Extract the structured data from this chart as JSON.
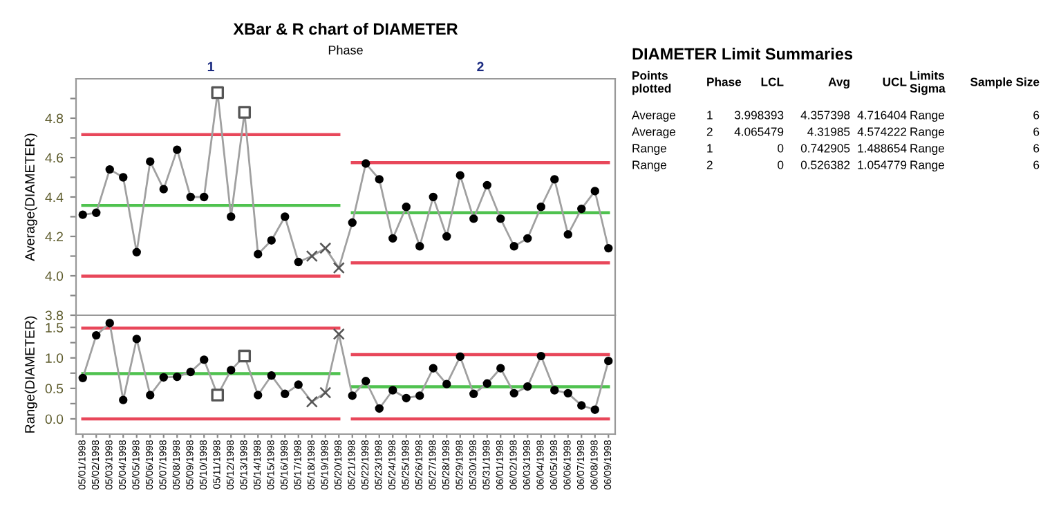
{
  "chart_data": [
    {
      "type": "line",
      "title": "XBar & R chart of DIAMETER",
      "ylabel": "Average(DIAMETER)",
      "annotations": [
        "Phase",
        "1",
        "2"
      ],
      "tick_labels": "y",
      "ylim": [
        3.8,
        5.0
      ],
      "yticks": [
        3.8,
        {
          "value": 3.9,
          "label": null
        },
        {
          "value": 4.0,
          "label": "4.0"
        },
        {
          "value": 4.1,
          "label": null
        },
        4.2,
        {
          "value": 4.3,
          "label": null
        },
        4.4,
        {
          "value": 4.5,
          "label": null
        },
        4.6,
        {
          "value": 4.7,
          "label": null
        },
        4.8,
        {
          "value": 4.9,
          "label": null
        }
      ],
      "series": [
        {
          "type": "line",
          "color": "#a0a0a0",
          "marker": "none",
          "values": [
            4.31,
            4.32,
            4.54,
            4.5,
            4.12,
            4.58,
            4.44,
            4.64,
            4.4,
            4.4,
            4.93,
            4.3,
            4.83,
            4.11,
            4.18,
            4.3,
            4.07,
            4.1,
            4.14,
            4.04,
            4.27,
            4.57,
            4.49,
            4.19,
            4.35,
            4.15,
            4.4,
            4.2,
            4.51,
            4.29,
            4.46,
            4.29,
            4.15,
            4.19,
            4.35,
            4.49,
            4.21,
            4.34,
            4.43,
            4.14
          ]
        },
        {
          "type": "scatter",
          "color": "#000000",
          "marker": "circle",
          "values": [
            4.31,
            4.32,
            4.54,
            4.5,
            4.12,
            4.58,
            4.44,
            4.64,
            4.4,
            4.4,
            null,
            4.3,
            null,
            4.11,
            4.18,
            4.3,
            4.07,
            null,
            null,
            null,
            4.27,
            4.57,
            4.49,
            4.19,
            4.35,
            4.15,
            4.4,
            4.2,
            4.51,
            4.29,
            4.46,
            4.29,
            4.15,
            4.19,
            4.35,
            4.49,
            4.21,
            4.34,
            4.43,
            4.14
          ]
        },
        {
          "type": "scatter",
          "color": "#555555",
          "marker": "square",
          "values": [
            null,
            null,
            null,
            null,
            null,
            null,
            null,
            null,
            null,
            null,
            4.93,
            null,
            4.83,
            null,
            null,
            null,
            null,
            null,
            null,
            null,
            null,
            null,
            null,
            null,
            null,
            null,
            null,
            null,
            null,
            null,
            null,
            null,
            null,
            null,
            null,
            null,
            null,
            null,
            null,
            null
          ]
        },
        {
          "type": "scatter",
          "color": "#555555",
          "marker": "cross",
          "values": [
            null,
            null,
            null,
            null,
            null,
            null,
            null,
            null,
            null,
            null,
            null,
            null,
            null,
            null,
            null,
            null,
            null,
            4.1,
            4.14,
            4.04,
            null,
            null,
            null,
            null,
            null,
            null,
            null,
            null,
            null,
            null,
            null,
            null,
            null,
            null,
            null,
            null,
            null,
            null,
            null,
            null
          ]
        },
        {
          "type": "step",
          "color": "#e8475a",
          "values": [
            4.716404,
            4.716404,
            4.716404,
            4.716404,
            4.716404,
            4.716404,
            4.716404,
            4.716404,
            4.716404,
            4.716404,
            4.716404,
            4.716404,
            4.716404,
            4.716404,
            4.716404,
            4.716404,
            4.716404,
            4.716404,
            4.716404,
            4.716404,
            null,
            null,
            null,
            null,
            null,
            null,
            null,
            null,
            null,
            null,
            null,
            null,
            null,
            null,
            null,
            null,
            null,
            null,
            null,
            null
          ]
        },
        {
          "type": "step",
          "color": "#4fc24f",
          "values": [
            4.357398,
            4.357398,
            4.357398,
            4.357398,
            4.357398,
            4.357398,
            4.357398,
            4.357398,
            4.357398,
            4.357398,
            4.357398,
            4.357398,
            4.357398,
            4.357398,
            4.357398,
            4.357398,
            4.357398,
            4.357398,
            4.357398,
            4.357398,
            null,
            null,
            null,
            null,
            null,
            null,
            null,
            null,
            null,
            null,
            null,
            null,
            null,
            null,
            null,
            null,
            null,
            null,
            null,
            null
          ]
        },
        {
          "type": "step",
          "color": "#e8475a",
          "values": [
            3.998393,
            3.998393,
            3.998393,
            3.998393,
            3.998393,
            3.998393,
            3.998393,
            3.998393,
            3.998393,
            3.998393,
            3.998393,
            3.998393,
            3.998393,
            3.998393,
            3.998393,
            3.998393,
            3.998393,
            3.998393,
            3.998393,
            3.998393,
            null,
            null,
            null,
            null,
            null,
            null,
            null,
            null,
            null,
            null,
            null,
            null,
            null,
            null,
            null,
            null,
            null,
            null,
            null,
            null
          ]
        },
        {
          "type": "step",
          "color": "#e8475a",
          "values": [
            null,
            null,
            null,
            null,
            null,
            null,
            null,
            null,
            null,
            null,
            null,
            null,
            null,
            null,
            null,
            null,
            null,
            null,
            null,
            null,
            4.574222,
            4.574222,
            4.574222,
            4.574222,
            4.574222,
            4.574222,
            4.574222,
            4.574222,
            4.574222,
            4.574222,
            4.574222,
            4.574222,
            4.574222,
            4.574222,
            4.574222,
            4.574222,
            4.574222,
            4.574222,
            4.574222,
            4.574222
          ]
        },
        {
          "type": "step",
          "color": "#4fc24f",
          "values": [
            null,
            null,
            null,
            null,
            null,
            null,
            null,
            null,
            null,
            null,
            null,
            null,
            null,
            null,
            null,
            null,
            null,
            null,
            null,
            null,
            4.31985,
            4.31985,
            4.31985,
            4.31985,
            4.31985,
            4.31985,
            4.31985,
            4.31985,
            4.31985,
            4.31985,
            4.31985,
            4.31985,
            4.31985,
            4.31985,
            4.31985,
            4.31985,
            4.31985,
            4.31985,
            4.31985,
            4.31985
          ]
        },
        {
          "type": "step",
          "color": "#e8475a",
          "values": [
            null,
            null,
            null,
            null,
            null,
            null,
            null,
            null,
            null,
            null,
            null,
            null,
            null,
            null,
            null,
            null,
            null,
            null,
            null,
            null,
            4.065479,
            4.065479,
            4.065479,
            4.065479,
            4.065479,
            4.065479,
            4.065479,
            4.065479,
            4.065479,
            4.065479,
            4.065479,
            4.065479,
            4.065479,
            4.065479,
            4.065479,
            4.065479,
            4.065479,
            4.065479,
            4.065479,
            4.065479
          ]
        }
      ]
    },
    {
      "type": "line",
      "ylabel": "Range(DIAMETER)",
      "categories": [
        "05/01/1998",
        "05/02/1998",
        "05/03/1998",
        "05/04/1998",
        "05/05/1998",
        "05/06/1998",
        "05/07/1998",
        "05/08/1998",
        "05/09/1998",
        "05/10/1998",
        "05/11/1998",
        "05/12/1998",
        "05/13/1998",
        "05/14/1998",
        "05/15/1998",
        "05/16/1998",
        "05/17/1998",
        "05/18/1998",
        "05/19/1998",
        "05/20/1998",
        "05/21/1998",
        "05/22/1998",
        "05/23/1998",
        "05/24/1998",
        "05/25/1998",
        "05/26/1998",
        "05/27/1998",
        "05/28/1998",
        "05/29/1998",
        "05/30/1998",
        "05/31/1998",
        "06/01/1998",
        "06/02/1998",
        "06/03/1998",
        "06/04/1998",
        "06/05/1998",
        "06/06/1998",
        "06/07/1998",
        "06/08/1998",
        "06/09/1998"
      ],
      "ylim": [
        -0.25,
        1.7
      ],
      "yticks": [
        {
          "value": 0.0,
          "label": "0.0"
        },
        {
          "value": 0.25,
          "label": null
        },
        {
          "value": 0.5,
          "label": "0.5"
        },
        {
          "value": 0.75,
          "label": null
        },
        {
          "value": 1.0,
          "label": "1.0"
        },
        {
          "value": 1.25,
          "label": null
        },
        {
          "value": 1.5,
          "label": "1.5"
        }
      ],
      "series": [
        {
          "type": "line",
          "color": "#a0a0a0",
          "marker": "none",
          "values": [
            0.67,
            1.37,
            1.57,
            0.31,
            1.31,
            0.39,
            0.68,
            0.69,
            0.77,
            0.97,
            0.39,
            0.8,
            1.03,
            0.39,
            0.71,
            0.41,
            0.56,
            0.28,
            0.43,
            1.39,
            0.38,
            0.62,
            0.17,
            0.47,
            0.34,
            0.38,
            0.83,
            0.57,
            1.02,
            0.41,
            0.58,
            0.83,
            0.42,
            0.53,
            1.03,
            0.47,
            0.42,
            0.22,
            0.15,
            0.95
          ]
        },
        {
          "type": "scatter",
          "color": "#000000",
          "marker": "circle",
          "values": [
            0.67,
            1.37,
            1.57,
            0.31,
            1.31,
            0.39,
            0.68,
            0.69,
            0.77,
            0.97,
            null,
            0.8,
            null,
            0.39,
            0.71,
            0.41,
            0.56,
            null,
            null,
            null,
            0.38,
            0.62,
            0.17,
            0.47,
            0.34,
            0.38,
            0.83,
            0.57,
            1.02,
            0.41,
            0.58,
            0.83,
            0.42,
            0.53,
            1.03,
            0.47,
            0.42,
            0.22,
            0.15,
            0.95
          ]
        },
        {
          "type": "scatter",
          "color": "#555555",
          "marker": "square",
          "values": [
            null,
            null,
            null,
            null,
            null,
            null,
            null,
            null,
            null,
            null,
            0.39,
            null,
            1.03,
            null,
            null,
            null,
            null,
            null,
            null,
            null,
            null,
            null,
            null,
            null,
            null,
            null,
            null,
            null,
            null,
            null,
            null,
            null,
            null,
            null,
            null,
            null,
            null,
            null,
            null,
            null
          ]
        },
        {
          "type": "scatter",
          "color": "#555555",
          "marker": "cross",
          "values": [
            null,
            null,
            null,
            null,
            null,
            null,
            null,
            null,
            null,
            null,
            null,
            null,
            null,
            null,
            null,
            null,
            null,
            0.28,
            0.43,
            1.39,
            null,
            null,
            null,
            null,
            null,
            null,
            null,
            null,
            null,
            null,
            null,
            null,
            null,
            null,
            null,
            null,
            null,
            null,
            null,
            null
          ]
        },
        {
          "type": "step",
          "color": "#e8475a",
          "values": [
            1.488654,
            1.488654,
            1.488654,
            1.488654,
            1.488654,
            1.488654,
            1.488654,
            1.488654,
            1.488654,
            1.488654,
            1.488654,
            1.488654,
            1.488654,
            1.488654,
            1.488654,
            1.488654,
            1.488654,
            1.488654,
            1.488654,
            1.488654,
            null,
            null,
            null,
            null,
            null,
            null,
            null,
            null,
            null,
            null,
            null,
            null,
            null,
            null,
            null,
            null,
            null,
            null,
            null,
            null
          ]
        },
        {
          "type": "step",
          "color": "#4fc24f",
          "values": [
            0.742905,
            0.742905,
            0.742905,
            0.742905,
            0.742905,
            0.742905,
            0.742905,
            0.742905,
            0.742905,
            0.742905,
            0.742905,
            0.742905,
            0.742905,
            0.742905,
            0.742905,
            0.742905,
            0.742905,
            0.742905,
            0.742905,
            0.742905,
            null,
            null,
            null,
            null,
            null,
            null,
            null,
            null,
            null,
            null,
            null,
            null,
            null,
            null,
            null,
            null,
            null,
            null,
            null,
            null
          ]
        },
        {
          "type": "step",
          "color": "#e8475a",
          "values": [
            0,
            0,
            0,
            0,
            0,
            0,
            0,
            0,
            0,
            0,
            0,
            0,
            0,
            0,
            0,
            0,
            0,
            0,
            0,
            0,
            null,
            null,
            null,
            null,
            null,
            null,
            null,
            null,
            null,
            null,
            null,
            null,
            null,
            null,
            null,
            null,
            null,
            null,
            null,
            null
          ]
        },
        {
          "type": "step",
          "color": "#e8475a",
          "values": [
            null,
            null,
            null,
            null,
            null,
            null,
            null,
            null,
            null,
            null,
            null,
            null,
            null,
            null,
            null,
            null,
            null,
            null,
            null,
            null,
            1.054779,
            1.054779,
            1.054779,
            1.054779,
            1.054779,
            1.054779,
            1.054779,
            1.054779,
            1.054779,
            1.054779,
            1.054779,
            1.054779,
            1.054779,
            1.054779,
            1.054779,
            1.054779,
            1.054779,
            1.054779,
            1.054779,
            1.054779
          ]
        },
        {
          "type": "step",
          "color": "#4fc24f",
          "values": [
            null,
            null,
            null,
            null,
            null,
            null,
            null,
            null,
            null,
            null,
            null,
            null,
            null,
            null,
            null,
            null,
            null,
            null,
            null,
            null,
            0.526382,
            0.526382,
            0.526382,
            0.526382,
            0.526382,
            0.526382,
            0.526382,
            0.526382,
            0.526382,
            0.526382,
            0.526382,
            0.526382,
            0.526382,
            0.526382,
            0.526382,
            0.526382,
            0.526382,
            0.526382,
            0.526382,
            0.526382
          ]
        },
        {
          "type": "step",
          "color": "#e8475a",
          "values": [
            null,
            null,
            null,
            null,
            null,
            null,
            null,
            null,
            null,
            null,
            null,
            null,
            null,
            null,
            null,
            null,
            null,
            null,
            null,
            null,
            0,
            0,
            0,
            0,
            0,
            0,
            0,
            0,
            0,
            0,
            0,
            0,
            0,
            0,
            0,
            0,
            0,
            0,
            0,
            0
          ]
        }
      ]
    },
    {
      "type": "other",
      "title": "DIAMETER Limit Summaries",
      "annotations": [
        "Points\nplotted",
        "Phase",
        "LCL",
        "Avg",
        "UCL",
        "Limits\nSigma",
        "Sample Size",
        "Average",
        "1",
        "3.998393",
        "4.357398",
        "4.716404",
        "Range",
        "6",
        "Average",
        "2",
        "4.065479",
        "4.31985",
        "4.574222",
        "Range",
        "6",
        "Range",
        "1",
        "0",
        "0.742905",
        "1.488654",
        "Range",
        "6",
        "Range",
        "2",
        "0",
        "0.526382",
        "1.054779",
        "Range",
        "6"
      ]
    }
  ]
}
